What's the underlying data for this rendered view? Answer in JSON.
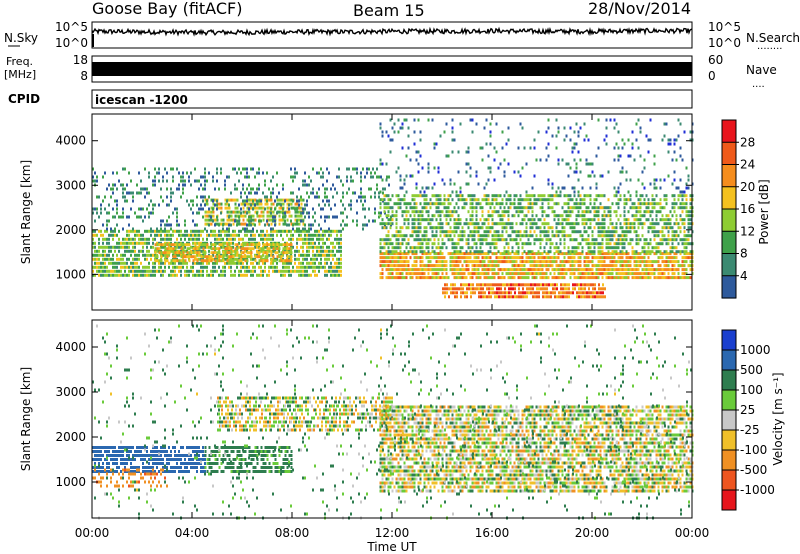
{
  "header": {
    "station": "Goose Bay (fitACF)",
    "beam": "Beam 15",
    "date": "28/Nov/2014"
  },
  "noise_panel": {
    "left_label": "N.Sky",
    "right_label": "N.Search",
    "right_legend": "........",
    "left_ticks": [
      "10^5",
      "10^0"
    ],
    "right_ticks": [
      "10^5",
      "10^0"
    ]
  },
  "freq_panel": {
    "left_label_1": "Freq.",
    "left_label_2": "[MHz]",
    "right_label": "Nave",
    "right_legend": "....",
    "left_ticks": [
      "18",
      "8"
    ],
    "right_ticks": [
      "60",
      "0"
    ]
  },
  "cpid_panel": {
    "label": "CPID",
    "value": "icescan -1200"
  },
  "power_panel": {
    "ylabel": "Slant Range [km]",
    "colorbar_label": "Power [dB]",
    "colorbar_ticks": [
      "28",
      "24",
      "20",
      "16",
      "12",
      "8",
      "4"
    ],
    "colorbar_colors": [
      "#e8141c",
      "#ef5a1a",
      "#f58d1d",
      "#f4c11f",
      "#8ecc33",
      "#3fa14a",
      "#3b8a72",
      "#2e5a9c",
      "#1f2ed6"
    ]
  },
  "velocity_panel": {
    "ylabel": "Slant Range [km]",
    "colorbar_label": "Velocity [m s⁻¹]",
    "colorbar_ticks": [
      "1000",
      "500",
      "100",
      "25",
      "-25",
      "-100",
      "-500",
      "-1000"
    ],
    "colorbar_colors": [
      "#1a3fcf",
      "#2b68b0",
      "#2e7d4f",
      "#6acb3a",
      "#c8c8c8",
      "#f0c02a",
      "#f09023",
      "#ee5520",
      "#e6151c"
    ]
  },
  "xaxis": {
    "label": "Time UT",
    "ticks": [
      "00:00",
      "04:00",
      "08:00",
      "12:00",
      "16:00",
      "20:00",
      "00:00"
    ]
  },
  "chart_data": [
    {
      "type": "line",
      "panel": "noise",
      "series": [
        {
          "name": "N.Sky",
          "x_hours": [
            0,
            2,
            4,
            6,
            8,
            10,
            12,
            14,
            16,
            18,
            20,
            22,
            24
          ],
          "values_log10": [
            3.2,
            3.1,
            3.0,
            3.0,
            3.1,
            3.1,
            3.2,
            3.2,
            3.3,
            3.2,
            3.2,
            3.3,
            3.3
          ]
        },
        {
          "name": "N.Search",
          "x_hours": [
            0,
            24
          ],
          "values_log10": [
            null,
            null
          ]
        }
      ],
      "xlim": [
        0,
        24
      ],
      "ylim_log10": [
        0,
        5
      ]
    },
    {
      "type": "line",
      "panel": "frequency",
      "series": [
        {
          "name": "Freq.",
          "x_hours": [
            0,
            6,
            12,
            18,
            24
          ],
          "values": [
            12,
            12,
            12,
            12,
            12
          ]
        },
        {
          "name": "Nave",
          "x_hours": [
            0,
            24
          ],
          "values": [
            null,
            null
          ]
        }
      ],
      "xlim": [
        0,
        24
      ],
      "ylim": [
        8,
        18
      ],
      "y2lim": [
        0,
        60
      ]
    },
    {
      "type": "heatmap",
      "panel": "power",
      "quantity": "Power [dB]",
      "xlim": [
        0,
        24
      ],
      "ylim": [
        200,
        4600
      ],
      "y_ticks": [
        1000,
        2000,
        3000,
        4000
      ],
      "color_levels": [
        4,
        8,
        12,
        16,
        20,
        24,
        28
      ],
      "regions": [
        {
          "t_start": 0.0,
          "t_end": 10.0,
          "r_min": 1000,
          "r_max": 2000,
          "db": 14,
          "density": 0.75
        },
        {
          "t_start": 2.5,
          "t_end": 8.0,
          "r_min": 1300,
          "r_max": 1700,
          "db": 20,
          "density": 0.8
        },
        {
          "t_start": 4.5,
          "t_end": 8.5,
          "r_min": 2100,
          "r_max": 2700,
          "db": 18,
          "density": 0.7
        },
        {
          "t_start": 0.0,
          "t_end": 12.0,
          "r_min": 2000,
          "r_max": 3400,
          "db": 8,
          "density": 0.25
        },
        {
          "t_start": 11.5,
          "t_end": 24.0,
          "r_min": 900,
          "r_max": 1500,
          "db": 21,
          "density": 0.85
        },
        {
          "t_start": 11.5,
          "t_end": 24.0,
          "r_min": 1500,
          "r_max": 2800,
          "db": 13,
          "density": 0.6
        },
        {
          "t_start": 14.0,
          "t_end": 20.5,
          "r_min": 450,
          "r_max": 800,
          "db": 26,
          "density": 0.85
        },
        {
          "t_start": 11.5,
          "t_end": 24.0,
          "r_min": 2800,
          "r_max": 4500,
          "db": 6,
          "density": 0.12
        }
      ]
    },
    {
      "type": "heatmap",
      "panel": "velocity",
      "quantity": "Velocity [m s-1]",
      "xlim": [
        0,
        24
      ],
      "ylim": [
        200,
        4600
      ],
      "y_ticks": [
        1000,
        2000,
        3000,
        4000
      ],
      "color_levels": [
        -1000,
        -500,
        -100,
        -25,
        25,
        100,
        500,
        1000
      ],
      "regions": [
        {
          "t_start": 0.0,
          "t_end": 4.5,
          "r_min": 1200,
          "r_max": 1800,
          "velocity": 800,
          "density": 0.75
        },
        {
          "t_start": 4.5,
          "t_end": 8.0,
          "r_min": 1200,
          "r_max": 1800,
          "velocity": 200,
          "density": 0.7
        },
        {
          "t_start": 0.0,
          "t_end": 3.0,
          "r_min": 900,
          "r_max": 1300,
          "velocity": -400,
          "density": 0.4
        },
        {
          "t_start": 5.0,
          "t_end": 12.0,
          "r_min": 2100,
          "r_max": 2900,
          "velocity": 0,
          "density": 0.6
        },
        {
          "t_start": 11.5,
          "t_end": 24.0,
          "r_min": 800,
          "r_max": 2700,
          "velocity": 0,
          "density": 0.75
        },
        {
          "t_start": 0.0,
          "t_end": 24.0,
          "r_min": 200,
          "r_max": 4500,
          "velocity": 120,
          "density": 0.06
        }
      ]
    }
  ]
}
